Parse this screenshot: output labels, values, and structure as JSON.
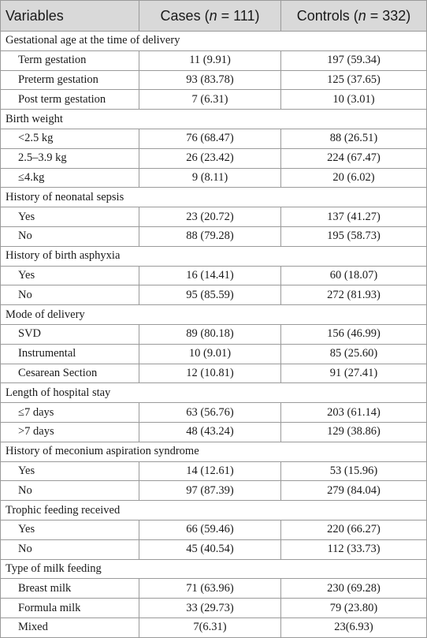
{
  "header": {
    "variables": "Variables",
    "cases_prefix": "Cases (",
    "cases_n": "n",
    "cases_suffix": " = 111)",
    "controls_prefix": "Controls (",
    "controls_n": "n",
    "controls_suffix": " = 332)"
  },
  "groups": [
    {
      "title": "Gestational age at the time of delivery",
      "rows": [
        {
          "label": "Term gestation",
          "cases": "11 (9.91)",
          "controls": "197 (59.34)"
        },
        {
          "label": "Preterm gestation",
          "cases": "93 (83.78)",
          "controls": "125 (37.65)"
        },
        {
          "label": "Post term gestation",
          "cases": "7 (6.31)",
          "controls": "10 (3.01)"
        }
      ]
    },
    {
      "title": "Birth weight",
      "rows": [
        {
          "label": "<2.5 kg",
          "cases": "76 (68.47)",
          "controls": "88 (26.51)"
        },
        {
          "label": "2.5–3.9 kg",
          "cases": "26 (23.42)",
          "controls": "224 (67.47)"
        },
        {
          "label": "≤4.kg",
          "cases": "9 (8.11)",
          "controls": "20 (6.02)"
        }
      ]
    },
    {
      "title": "History of neonatal sepsis",
      "rows": [
        {
          "label": "Yes",
          "cases": "23 (20.72)",
          "controls": "137 (41.27)"
        },
        {
          "label": "No",
          "cases": "88 (79.28)",
          "controls": "195 (58.73)"
        }
      ]
    },
    {
      "title": "History of birth asphyxia",
      "rows": [
        {
          "label": "Yes",
          "cases": "16 (14.41)",
          "controls": "60 (18.07)"
        },
        {
          "label": "No",
          "cases": "95 (85.59)",
          "controls": "272 (81.93)"
        }
      ]
    },
    {
      "title": "Mode of delivery",
      "rows": [
        {
          "label": "SVD",
          "cases": "89 (80.18)",
          "controls": "156 (46.99)"
        },
        {
          "label": "Instrumental",
          "cases": "10 (9.01)",
          "controls": "85 (25.60)"
        },
        {
          "label": "Cesarean Section",
          "cases": "12 (10.81)",
          "controls": "91 (27.41)"
        }
      ]
    },
    {
      "title": "Length of hospital stay",
      "rows": [
        {
          "label": "≤7 days",
          "cases": "63 (56.76)",
          "controls": "203 (61.14)"
        },
        {
          "label": ">7 days",
          "cases": "48 (43.24)",
          "controls": "129 (38.86)"
        }
      ]
    },
    {
      "title": "History of meconium aspiration syndrome",
      "rows": [
        {
          "label": "Yes",
          "cases": "14 (12.61)",
          "controls": "53 (15.96)"
        },
        {
          "label": "No",
          "cases": "97 (87.39)",
          "controls": "279 (84.04)"
        }
      ]
    },
    {
      "title": "Trophic feeding received",
      "rows": [
        {
          "label": "Yes",
          "cases": "66 (59.46)",
          "controls": "220 (66.27)"
        },
        {
          "label": "No",
          "cases": "45 (40.54)",
          "controls": "112 (33.73)"
        }
      ]
    },
    {
      "title": "Type of milk feeding",
      "rows": [
        {
          "label": "Breast milk",
          "cases": "71 (63.96)",
          "controls": "230 (69.28)"
        },
        {
          "label": "Formula milk",
          "cases": "33 (29.73)",
          "controls": "79 (23.80)"
        },
        {
          "label": "Mixed",
          "cases": "7(6.31)",
          "controls": "23(6.93)"
        }
      ]
    }
  ]
}
